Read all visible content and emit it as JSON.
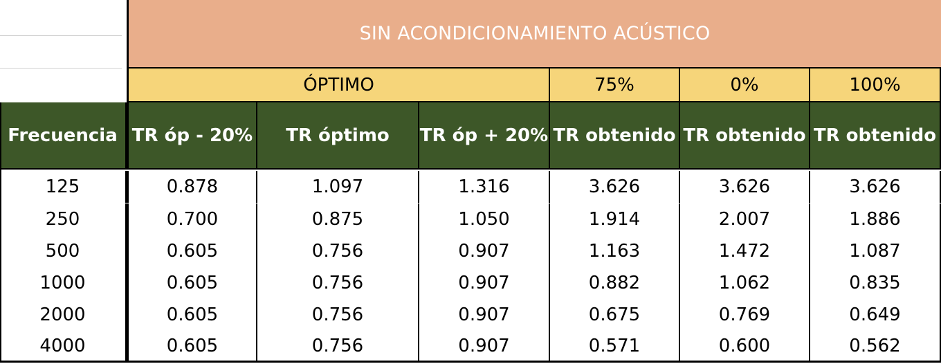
{
  "table": {
    "title": "SIN ACONDICIONAMIENTO ACÚSTICO",
    "groups": [
      "ÓPTIMO",
      "75%",
      "0%",
      "100%"
    ],
    "headers": [
      "Frecuencia",
      "TR óp - 20%",
      "TR óptimo",
      "TR óp + 20%",
      "TR obtenido",
      "TR obtenido",
      "TR obtenido"
    ],
    "rows": [
      [
        "125",
        "0.878",
        "1.097",
        "1.316",
        "3.626",
        "3.626",
        "3.626"
      ],
      [
        "250",
        "0.700",
        "0.875",
        "1.050",
        "1.914",
        "2.007",
        "1.886"
      ],
      [
        "500",
        "0.605",
        "0.756",
        "0.907",
        "1.163",
        "1.472",
        "1.087"
      ],
      [
        "1000",
        "0.605",
        "0.756",
        "0.907",
        "0.882",
        "1.062",
        "0.835"
      ],
      [
        "2000",
        "0.605",
        "0.756",
        "0.907",
        "0.675",
        "0.769",
        "0.649"
      ],
      [
        "4000",
        "0.605",
        "0.756",
        "0.907",
        "0.571",
        "0.600",
        "0.562"
      ]
    ]
  },
  "colors": {
    "title_bg": "#e9ae8b",
    "group_bg": "#f6d57a",
    "header_bg": "#3d5728"
  }
}
